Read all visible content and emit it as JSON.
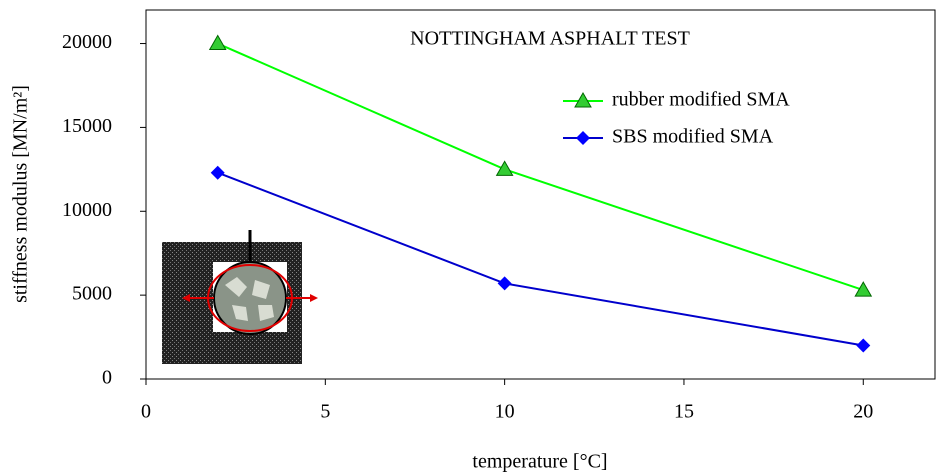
{
  "chart_data": {
    "type": "line",
    "title": "NOTTINGHAM ASPHALT TEST",
    "x_label": "temperature  [°C]",
    "y_label": "stiffness modulus [MN/m²]",
    "x": [
      2,
      10,
      20
    ],
    "series": [
      {
        "name": "rubber modified SMA",
        "color": "#00ff00",
        "marker": "triangle",
        "marker_color": "#33cc33",
        "values": [
          20000,
          12500,
          5300
        ]
      },
      {
        "name": "SBS modified SMA",
        "color": "#0000cc",
        "marker": "diamond",
        "marker_color": "#0000ff",
        "values": [
          12300,
          5700,
          2000
        ]
      }
    ],
    "xlim": [
      0,
      22
    ],
    "xticks": [
      0,
      5,
      10,
      15,
      20
    ],
    "ylim": [
      0,
      22000
    ],
    "yticks": [
      0,
      5000,
      10000,
      15000,
      20000
    ],
    "grid": false,
    "legend": "upper right"
  }
}
